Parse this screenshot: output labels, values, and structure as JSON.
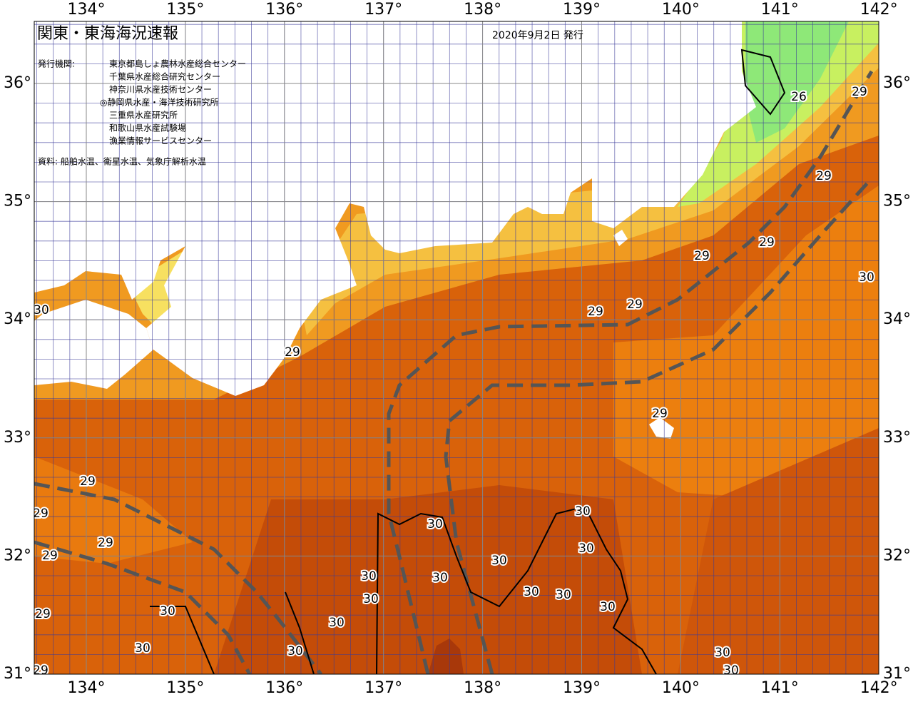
{
  "header": {
    "title": "関東・東海海況速報",
    "date": "2020年9月2日 発行",
    "issuers_label": "発行機関:",
    "issuers": [
      "東京都島しょ農林水産総合センター",
      "千葉県水産総合研究センター",
      "神奈川県水産技術センター",
      "◎静岡県水産・海洋技術研究所",
      "三重県水産研究所",
      "和歌山県水産試験場",
      "漁業情報サービスセンター"
    ],
    "source": "資料: 船舶水温、衛星水温、気象庁解析水温"
  },
  "map": {
    "lon_ticks": [
      {
        "value": 134,
        "label": "134°"
      },
      {
        "value": 135,
        "label": "135°"
      },
      {
        "value": 136,
        "label": "136°"
      },
      {
        "value": 137,
        "label": "137°"
      },
      {
        "value": 138,
        "label": "138°"
      },
      {
        "value": 139,
        "label": "139°"
      },
      {
        "value": 140,
        "label": "140°"
      },
      {
        "value": 141,
        "label": "141°"
      },
      {
        "value": 142,
        "label": "142°"
      }
    ],
    "lat_ticks": [
      {
        "value": 36,
        "label": "36°"
      },
      {
        "value": 35,
        "label": "35°"
      },
      {
        "value": 34,
        "label": "34°"
      },
      {
        "value": 33,
        "label": "33°"
      },
      {
        "value": 32,
        "label": "32°"
      },
      {
        "value": 31,
        "label": "31°"
      }
    ],
    "contour_labels": [
      26,
      29,
      29,
      29,
      29,
      29,
      29,
      30,
      30,
      29,
      29,
      29,
      29,
      29,
      29,
      29,
      30,
      30,
      30,
      30,
      30,
      30,
      30,
      30,
      30,
      30,
      30,
      30,
      30,
      30,
      30,
      30,
      29
    ]
  }
}
